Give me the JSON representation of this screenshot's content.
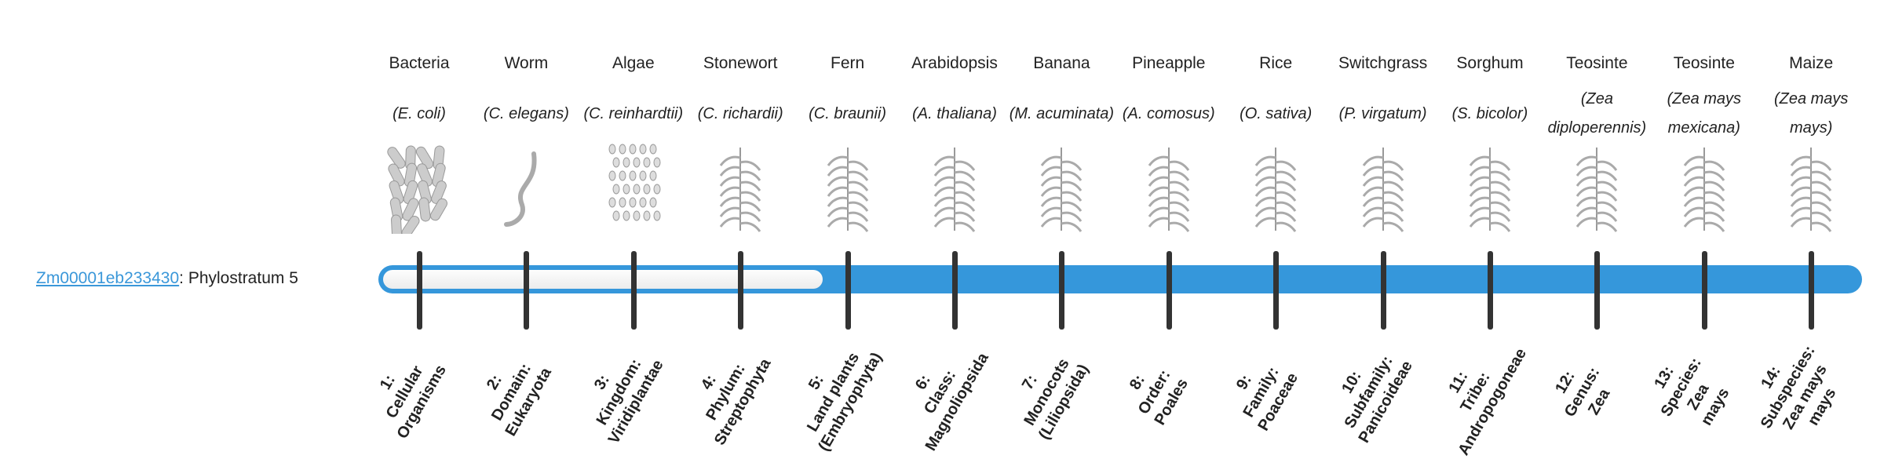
{
  "gene": {
    "id": "Zm00001eb233430",
    "suffix": ": Phylostratum 5"
  },
  "phylostratum": 5,
  "colors": {
    "accent": "#3597db",
    "tick": "#333333",
    "link": "#3a97d9"
  },
  "organisms": [
    {
      "common": "Bacteria",
      "species": "(E. coli)",
      "icon": "bacteria-icon"
    },
    {
      "common": "Worm",
      "species": "(C. elegans)",
      "icon": "worm-icon"
    },
    {
      "common": "Algae",
      "species": "(C. reinhardtii)",
      "icon": "algae-icon"
    },
    {
      "common": "Stonewort",
      "species": "(C. richardii)",
      "icon": "stonewort-icon"
    },
    {
      "common": "Fern",
      "species": "(C. braunii)",
      "icon": "fern-icon"
    },
    {
      "common": "Arabidopsis",
      "species": "(A. thaliana)",
      "icon": "arabidopsis-icon"
    },
    {
      "common": "Banana",
      "species": "(M. acuminata)",
      "icon": "banana-icon"
    },
    {
      "common": "Pineapple",
      "species": "(A. comosus)",
      "icon": "pineapple-icon"
    },
    {
      "common": "Rice",
      "species": "(O. sativa)",
      "icon": "rice-icon"
    },
    {
      "common": "Switchgrass",
      "species": "(P. virgatum)",
      "icon": "switchgrass-icon"
    },
    {
      "common": "Sorghum",
      "species": "(S. bicolor)",
      "icon": "sorghum-icon"
    },
    {
      "common": "Teosinte",
      "species": "(Zea diploperennis)",
      "icon": "teosinte-icon"
    },
    {
      "common": "Teosinte",
      "species": "(Zea mays mexicana)",
      "icon": "teosinte-icon"
    },
    {
      "common": "Maize",
      "species": "(Zea mays mays)",
      "icon": "maize-icon"
    }
  ],
  "strata": [
    "1:\nCellular\nOrganisms",
    "2:\nDomain:\nEukaryota",
    "3:\nKingdom:\nViridiplantae",
    "4:\nPhylum:\nStreptophyta",
    "5:\nLand plants\n(Embryophyta)",
    "6:\nClass:\nMagnoliopsida",
    "7:\nMonocots\n(Liliopsida)",
    "8:\nOrder:\nPoales",
    "9:\nFamily:\nPoaceae",
    "10:\nSubfamily:\nPanicoideae",
    "11:\nTribe:\nAndropogoneae",
    "12:\nGenus:\nZea",
    "13:\nSpecies:\nZea\nmays",
    "14:\nSubspecies:\nZea mays\nmays"
  ]
}
